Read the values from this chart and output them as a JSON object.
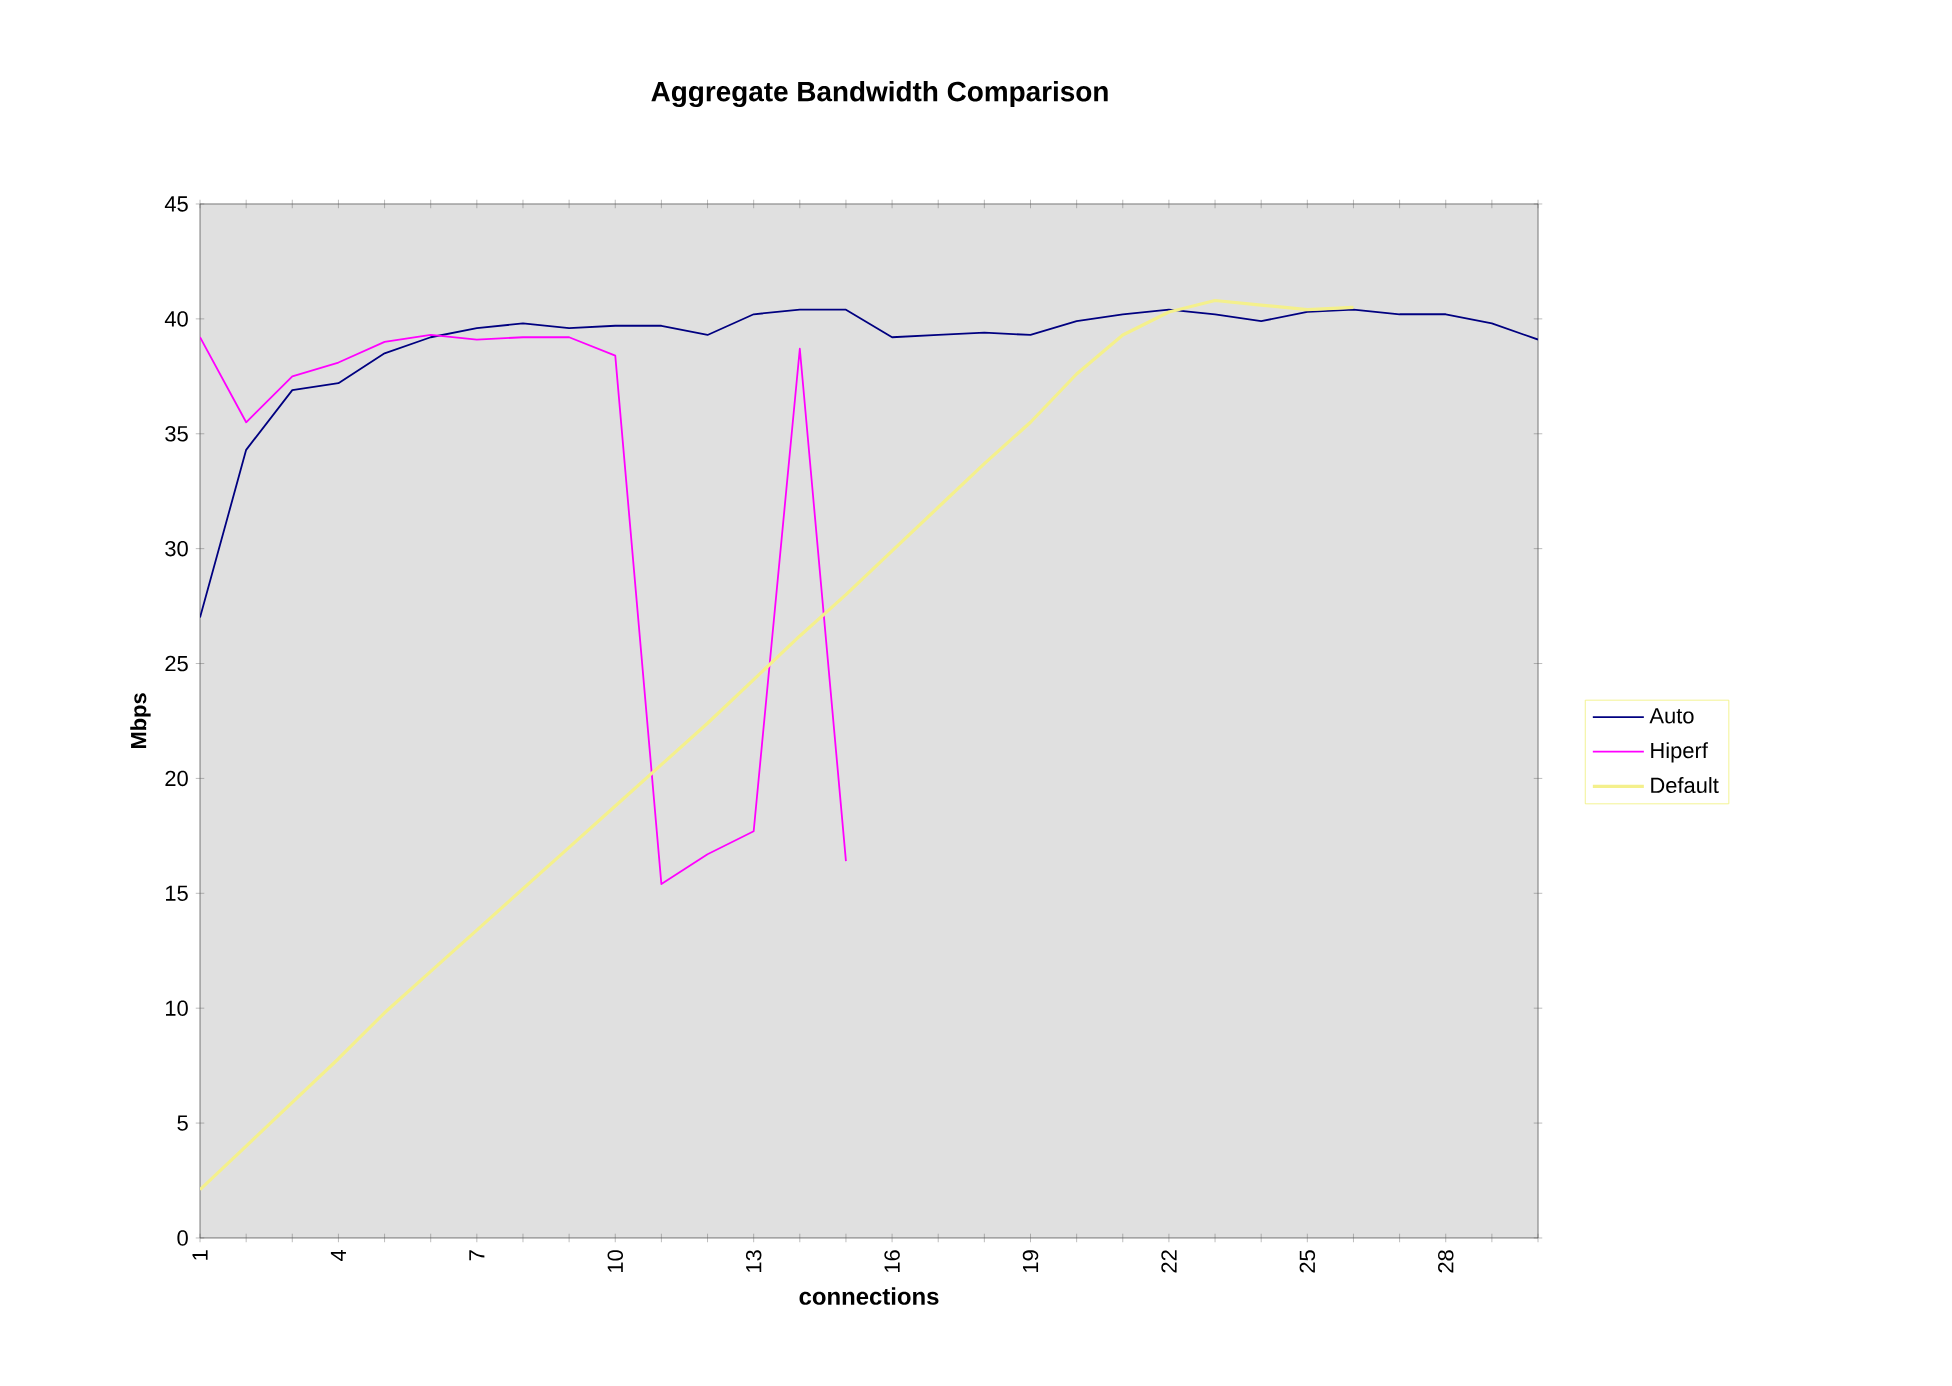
{
  "chart_data": {
    "type": "line",
    "title": "Aggregate Bandwidth Comparison",
    "xlabel": "connections",
    "ylabel": "Mbps",
    "categories": [
      "1",
      null,
      null,
      "4",
      null,
      null,
      "7",
      null,
      null,
      "10",
      null,
      null,
      "13",
      null,
      null,
      "16",
      null,
      null,
      "19",
      null,
      null,
      "22",
      null,
      null,
      "25",
      null,
      null,
      "28",
      null,
      null
    ],
    "series": [
      {
        "name": "Auto",
        "color": "#000080",
        "values": [
          27.0,
          34.3,
          36.9,
          37.2,
          38.5,
          39.2,
          39.6,
          39.8,
          39.6,
          39.7,
          39.7,
          39.3,
          40.2,
          40.4,
          40.4,
          39.2,
          39.3,
          39.4,
          39.3,
          39.9,
          40.2,
          40.4,
          40.2,
          39.9,
          40.3,
          40.4,
          40.2,
          40.2,
          39.8,
          39.1
        ]
      },
      {
        "name": "Hiperf",
        "color": "#ff00ff",
        "values": [
          39.2,
          35.5,
          37.5,
          38.1,
          39.0,
          39.3,
          39.1,
          39.2,
          39.2,
          38.4,
          15.4,
          16.7,
          17.7,
          38.7,
          16.4,
          null,
          null,
          null,
          null,
          null,
          null,
          null,
          null,
          null,
          null,
          null,
          null,
          null,
          null,
          null
        ]
      },
      {
        "name": "Default",
        "color": "#f4f08c",
        "values": [
          2.1,
          4.0,
          5.9,
          7.8,
          9.8,
          11.6,
          13.4,
          15.2,
          17.0,
          18.8,
          20.6,
          22.4,
          24.3,
          26.2,
          28.0,
          29.9,
          31.8,
          33.7,
          35.5,
          37.6,
          39.3,
          40.3,
          40.8,
          40.6,
          40.4,
          40.5,
          null,
          null,
          null,
          null
        ]
      }
    ],
    "ylim": [
      0,
      45
    ],
    "yticks": [
      0,
      5,
      10,
      15,
      20,
      25,
      30,
      35,
      40,
      45
    ],
    "grid": false,
    "legend": "right",
    "marker": "none",
    "line_style": "solid"
  }
}
